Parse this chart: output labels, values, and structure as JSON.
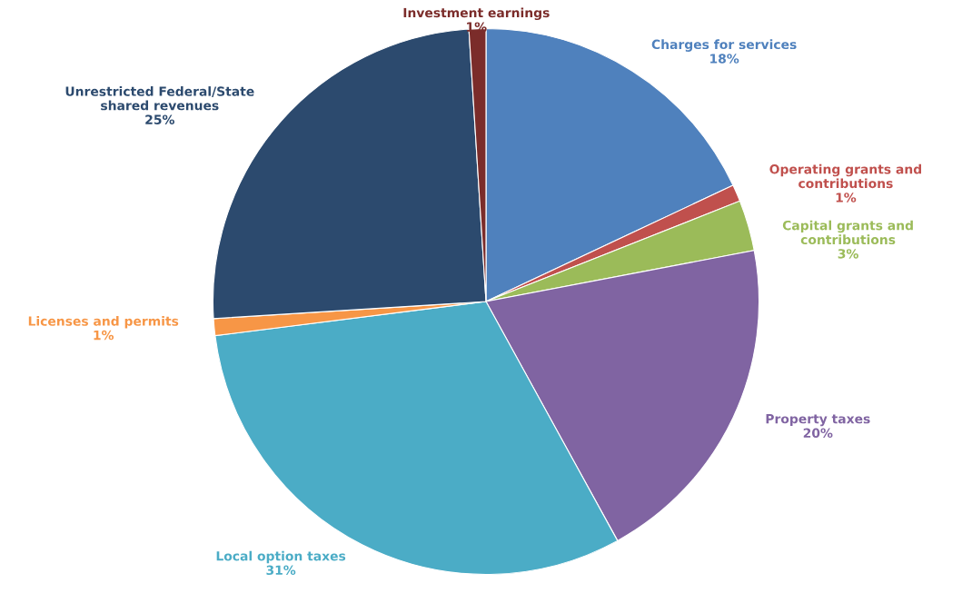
{
  "chart_data": {
    "type": "pie",
    "categories": [
      "Charges for services",
      "Operating grants and\ncontributions",
      "Capital grants and\ncontributions",
      "Property taxes",
      "Local option taxes",
      "Licenses and permits",
      "Unrestricted Federal/State\nshared revenues",
      "Investment earnings"
    ],
    "values": [
      18,
      1,
      3,
      20,
      31,
      1,
      25,
      1
    ],
    "value_labels": [
      "18%",
      "1%",
      "3%",
      "20%",
      "31%",
      "1%",
      "25%",
      "1%"
    ],
    "colors": [
      "#4f81bd",
      "#c0504d",
      "#9bbb59",
      "#8064a2",
      "#4bacc6",
      "#f79646",
      "#2c4a6e",
      "#7b2c2a"
    ],
    "legend": false
  }
}
